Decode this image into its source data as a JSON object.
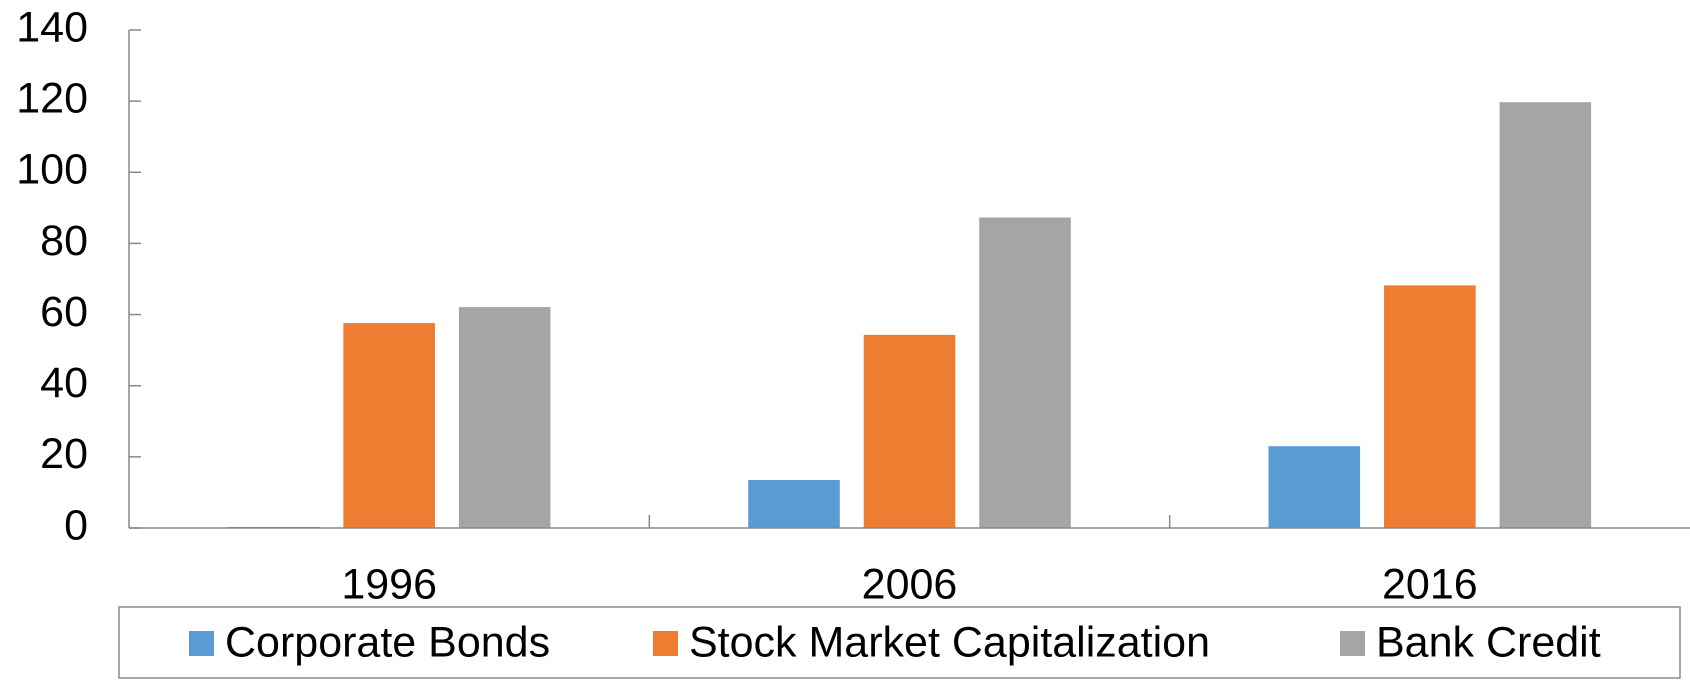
{
  "chart_data": {
    "type": "bar",
    "categories": [
      "1996",
      "2006",
      "2016"
    ],
    "series": [
      {
        "name": "Corporate Bonds",
        "color": "#5b9bd5",
        "values": [
          0.3,
          13.5,
          23
        ]
      },
      {
        "name": "Stock Market Capitalization",
        "color": "#ed7d31",
        "values": [
          57.6,
          54.3,
          68.2
        ]
      },
      {
        "name": "Bank Credit",
        "color": "#a5a5a5",
        "values": [
          62.1,
          87.3,
          119.7
        ]
      }
    ],
    "ylim": [
      0,
      140
    ],
    "yticks": [
      0,
      20,
      40,
      60,
      80,
      100,
      120,
      140
    ],
    "grid": false,
    "legend": "bottom"
  }
}
